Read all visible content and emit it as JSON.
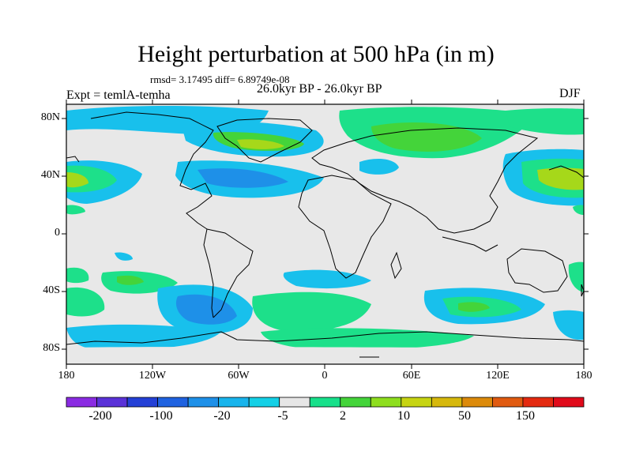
{
  "title": "Height perturbation at 500 hPa (in m)",
  "stats": "rmsd= 3.17495 diff= 6.89749e-08",
  "experiment": "Expt = temlA-temha",
  "period": "26.0kyr BP - 26.0kyr BP",
  "season": "DJF",
  "lat_ticks": [
    "80N",
    "40N",
    "0",
    "40S",
    "80S"
  ],
  "lon_ticks": [
    "180",
    "120W",
    "60W",
    "0",
    "60E",
    "120E",
    "180"
  ],
  "colorbar": {
    "colors": [
      "#8a2be2",
      "#5a32d8",
      "#2440d6",
      "#1f62e0",
      "#1e90e8",
      "#18b4ec",
      "#14d0e6",
      "#e6e6e6",
      "#17e08a",
      "#44d43a",
      "#8ede1e",
      "#c6d412",
      "#d6b80c",
      "#dc8a0a",
      "#e05a10",
      "#e42a10",
      "#e00a1a"
    ],
    "labels": [
      "-200",
      "-100",
      "-20",
      "-5",
      "2",
      "10",
      "50",
      "150"
    ]
  },
  "legend_colors": {
    "land": "#e8e8e8",
    "pos_low": "#1de08a",
    "pos_mid": "#44d43a",
    "pos_high": "#a6d81a",
    "neg_low": "#18c0ec",
    "neg_mid": "#1e90e8",
    "neg_high": "#1f62e0"
  }
}
